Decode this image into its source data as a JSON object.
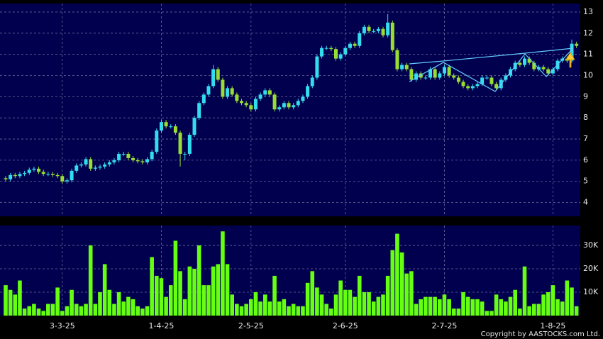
{
  "chart_data": [
    {
      "type": "candlestick",
      "up_color": "#33ddee",
      "down_color": "#99dd33",
      "grid": true,
      "ylim": [
        3.35,
        13.4
      ],
      "yticks": [
        4,
        5,
        6,
        7,
        8,
        9,
        10,
        11,
        12,
        13
      ],
      "open": [
        5.15,
        5.1,
        5.3,
        5.25,
        5.35,
        5.4,
        5.55,
        5.6,
        5.45,
        5.35,
        5.35,
        5.3,
        5.25,
        5.0,
        5.05,
        5.5,
        5.75,
        5.8,
        6.05,
        5.6,
        5.65,
        5.7,
        5.8,
        5.9,
        6.0,
        6.3,
        6.3,
        6.1,
        6.0,
        5.95,
        5.9,
        6.05,
        6.4,
        7.4,
        7.8,
        7.6,
        7.6,
        7.3,
        6.3,
        6.3,
        7.2,
        8.0,
        8.7,
        9.1,
        9.5,
        10.3,
        9.8,
        9.0,
        9.4,
        9.1,
        8.8,
        8.7,
        8.6,
        8.4,
        8.9,
        9.1,
        9.3,
        9.1,
        8.4,
        8.5,
        8.7,
        8.5,
        8.6,
        8.8,
        9.0,
        9.5,
        9.9,
        10.9,
        11.3,
        11.3,
        11.25,
        10.8,
        11.0,
        11.3,
        11.5,
        11.4,
        12.0,
        12.3,
        12.1,
        12.1,
        12.2,
        11.9,
        12.5,
        11.2,
        10.3,
        10.5,
        10.3,
        9.8,
        10.1,
        9.9,
        9.9,
        10.3,
        9.9,
        10.1,
        10.4,
        10.0,
        9.9,
        9.7,
        9.5,
        9.4,
        9.5,
        9.6,
        9.9,
        9.9,
        9.6,
        9.4,
        9.8,
        10.0,
        10.3,
        10.6,
        10.5,
        10.8,
        10.6,
        10.3,
        10.4,
        10.3,
        10.1,
        10.3,
        10.7,
        10.8,
        10.7,
        11.5
      ],
      "high": [
        5.25,
        5.4,
        5.4,
        5.45,
        5.5,
        5.65,
        5.7,
        5.7,
        5.55,
        5.45,
        5.45,
        5.4,
        5.35,
        5.15,
        5.6,
        5.85,
        5.9,
        6.15,
        6.15,
        5.75,
        5.8,
        5.9,
        6.0,
        6.1,
        6.4,
        6.4,
        6.4,
        6.2,
        6.1,
        6.05,
        6.15,
        6.5,
        7.5,
        7.9,
        7.9,
        7.7,
        7.7,
        7.4,
        6.4,
        7.3,
        8.1,
        8.8,
        9.2,
        9.6,
        10.5,
        10.4,
        9.9,
        9.5,
        9.5,
        9.2,
        8.9,
        8.8,
        8.7,
        9.0,
        9.2,
        9.4,
        9.4,
        9.2,
        8.6,
        8.8,
        8.8,
        8.7,
        8.9,
        9.1,
        9.6,
        10.0,
        11.0,
        11.4,
        11.4,
        11.4,
        11.35,
        11.1,
        11.4,
        11.6,
        11.6,
        12.1,
        12.4,
        12.4,
        12.2,
        12.3,
        12.3,
        12.9,
        12.6,
        11.3,
        10.6,
        10.6,
        10.4,
        10.2,
        10.2,
        10.0,
        10.4,
        10.4,
        10.2,
        10.5,
        10.5,
        10.1,
        10.0,
        9.8,
        9.6,
        9.6,
        9.7,
        10.0,
        10.0,
        10.0,
        9.7,
        9.9,
        10.1,
        10.4,
        10.7,
        10.7,
        10.9,
        10.9,
        10.7,
        10.5,
        10.5,
        10.4,
        10.4,
        10.8,
        10.9,
        10.9,
        11.7,
        11.6
      ],
      "low": [
        5.0,
        5.0,
        5.15,
        5.15,
        5.25,
        5.3,
        5.45,
        5.35,
        5.25,
        5.25,
        5.2,
        5.15,
        4.9,
        4.9,
        4.95,
        5.4,
        5.65,
        5.7,
        5.5,
        5.5,
        5.55,
        5.6,
        5.7,
        5.8,
        5.9,
        6.2,
        6.0,
        5.9,
        5.85,
        5.8,
        5.8,
        5.95,
        6.3,
        7.3,
        7.5,
        7.5,
        7.2,
        5.7,
        6.0,
        6.2,
        7.1,
        7.9,
        8.6,
        9.0,
        9.4,
        9.7,
        8.9,
        8.9,
        9.0,
        8.7,
        8.6,
        8.5,
        8.3,
        8.3,
        8.8,
        9.0,
        9.0,
        8.3,
        8.3,
        8.4,
        8.4,
        8.4,
        8.5,
        8.7,
        8.9,
        9.4,
        9.8,
        10.8,
        11.2,
        11.15,
        10.7,
        10.7,
        10.9,
        11.2,
        11.3,
        11.3,
        11.9,
        12.0,
        12.0,
        12.0,
        11.8,
        11.8,
        11.1,
        10.2,
        10.2,
        10.2,
        9.7,
        9.7,
        9.8,
        9.8,
        9.8,
        9.8,
        9.8,
        10.0,
        9.9,
        9.8,
        9.6,
        9.4,
        9.3,
        9.3,
        9.4,
        9.5,
        9.8,
        9.5,
        9.3,
        9.3,
        9.7,
        9.9,
        10.2,
        10.4,
        10.4,
        10.5,
        10.2,
        10.2,
        10.2,
        10.0,
        10.0,
        10.2,
        10.6,
        10.6,
        10.6,
        11.3
      ],
      "close": [
        5.1,
        5.3,
        5.25,
        5.35,
        5.4,
        5.55,
        5.6,
        5.45,
        5.35,
        5.35,
        5.3,
        5.25,
        5.0,
        5.05,
        5.5,
        5.75,
        5.8,
        6.05,
        5.6,
        5.65,
        5.7,
        5.8,
        5.9,
        6.0,
        6.3,
        6.3,
        6.1,
        6.0,
        5.95,
        5.9,
        6.05,
        6.4,
        7.4,
        7.8,
        7.6,
        7.6,
        7.3,
        6.3,
        6.3,
        7.2,
        8.0,
        8.7,
        9.1,
        9.5,
        10.3,
        9.8,
        9.0,
        9.4,
        9.1,
        8.8,
        8.7,
        8.6,
        8.4,
        8.9,
        9.1,
        9.3,
        9.1,
        8.4,
        8.5,
        8.7,
        8.5,
        8.6,
        8.8,
        9.0,
        9.5,
        9.9,
        10.9,
        11.3,
        11.3,
        11.25,
        10.8,
        11.0,
        11.3,
        11.5,
        11.4,
        12.0,
        12.3,
        12.1,
        12.1,
        12.2,
        11.9,
        12.5,
        11.2,
        10.3,
        10.5,
        10.3,
        9.8,
        10.1,
        9.9,
        9.9,
        10.3,
        9.9,
        10.1,
        10.4,
        10.0,
        9.9,
        9.7,
        9.5,
        9.4,
        9.5,
        9.6,
        9.9,
        9.9,
        9.6,
        9.4,
        9.8,
        10.0,
        10.3,
        10.6,
        10.5,
        10.8,
        10.6,
        10.3,
        10.4,
        10.3,
        10.1,
        10.3,
        10.7,
        10.8,
        10.7,
        11.5,
        11.4
      ]
    },
    {
      "type": "bar",
      "color": "#66ff11",
      "grid": true,
      "ylim": [
        0,
        38500
      ],
      "yticks": [
        {
          "value": 10000,
          "label": "10K"
        },
        {
          "value": 20000,
          "label": "20K"
        },
        {
          "value": 30000,
          "label": "30K"
        }
      ],
      "categories": [
        null,
        null,
        null,
        null,
        null,
        null,
        null,
        null,
        null,
        null,
        null,
        null,
        "3-3-25",
        null,
        null,
        null,
        null,
        null,
        null,
        null,
        null,
        null,
        null,
        null,
        null,
        null,
        null,
        null,
        null,
        null,
        null,
        null,
        null,
        "1-4-25",
        null,
        null,
        null,
        null,
        null,
        null,
        null,
        null,
        null,
        null,
        null,
        null,
        null,
        null,
        null,
        null,
        null,
        null,
        "2-5-25",
        null,
        null,
        null,
        null,
        null,
        null,
        null,
        null,
        null,
        null,
        null,
        null,
        null,
        null,
        null,
        null,
        null,
        null,
        null,
        "2-6-25",
        null,
        null,
        null,
        null,
        null,
        null,
        null,
        null,
        null,
        null,
        null,
        null,
        null,
        null,
        null,
        null,
        null,
        null,
        null,
        null,
        "2-7-25",
        null,
        null,
        null,
        null,
        null,
        null,
        null,
        null,
        null,
        null,
        null,
        null,
        null,
        null,
        null,
        null,
        null,
        null,
        null,
        null,
        null,
        null,
        "1-8-25",
        null,
        null,
        null,
        null,
        null
      ],
      "values": [
        13000,
        11000,
        9000,
        15000,
        3000,
        4000,
        5000,
        3000,
        2000,
        5000,
        5000,
        12000,
        2000,
        4000,
        11000,
        5000,
        4000,
        5000,
        30000,
        5000,
        10000,
        22000,
        11000,
        5000,
        10000,
        6000,
        8000,
        7000,
        4000,
        3000,
        4000,
        25000,
        17000,
        16000,
        8000,
        13000,
        32000,
        19000,
        7000,
        21000,
        20000,
        30000,
        13000,
        13000,
        21000,
        22000,
        36000,
        22000,
        9000,
        5000,
        4000,
        5000,
        7000,
        10000,
        6000,
        9000,
        6000,
        17000,
        6000,
        7000,
        4000,
        5000,
        4000,
        4000,
        14000,
        19000,
        12000,
        9000,
        5000,
        3000,
        9000,
        15000,
        11000,
        11000,
        8000,
        17000,
        10000,
        10000,
        6000,
        8000,
        9000,
        17000,
        28000,
        35000,
        27000,
        18000,
        19000,
        5000,
        7000,
        8000,
        8000,
        8000,
        7000,
        9000,
        7000,
        3000,
        3000,
        10000,
        8000,
        7000,
        7000,
        6000,
        2000,
        2000,
        9000,
        7000,
        6000,
        8000,
        11000,
        3000,
        21000,
        4000,
        5000,
        5000,
        9000,
        10000,
        13000,
        7000,
        6000,
        15000,
        12000,
        4000
      ]
    }
  ],
  "footer": "Copyright by AASTOCKS.com Ltd."
}
